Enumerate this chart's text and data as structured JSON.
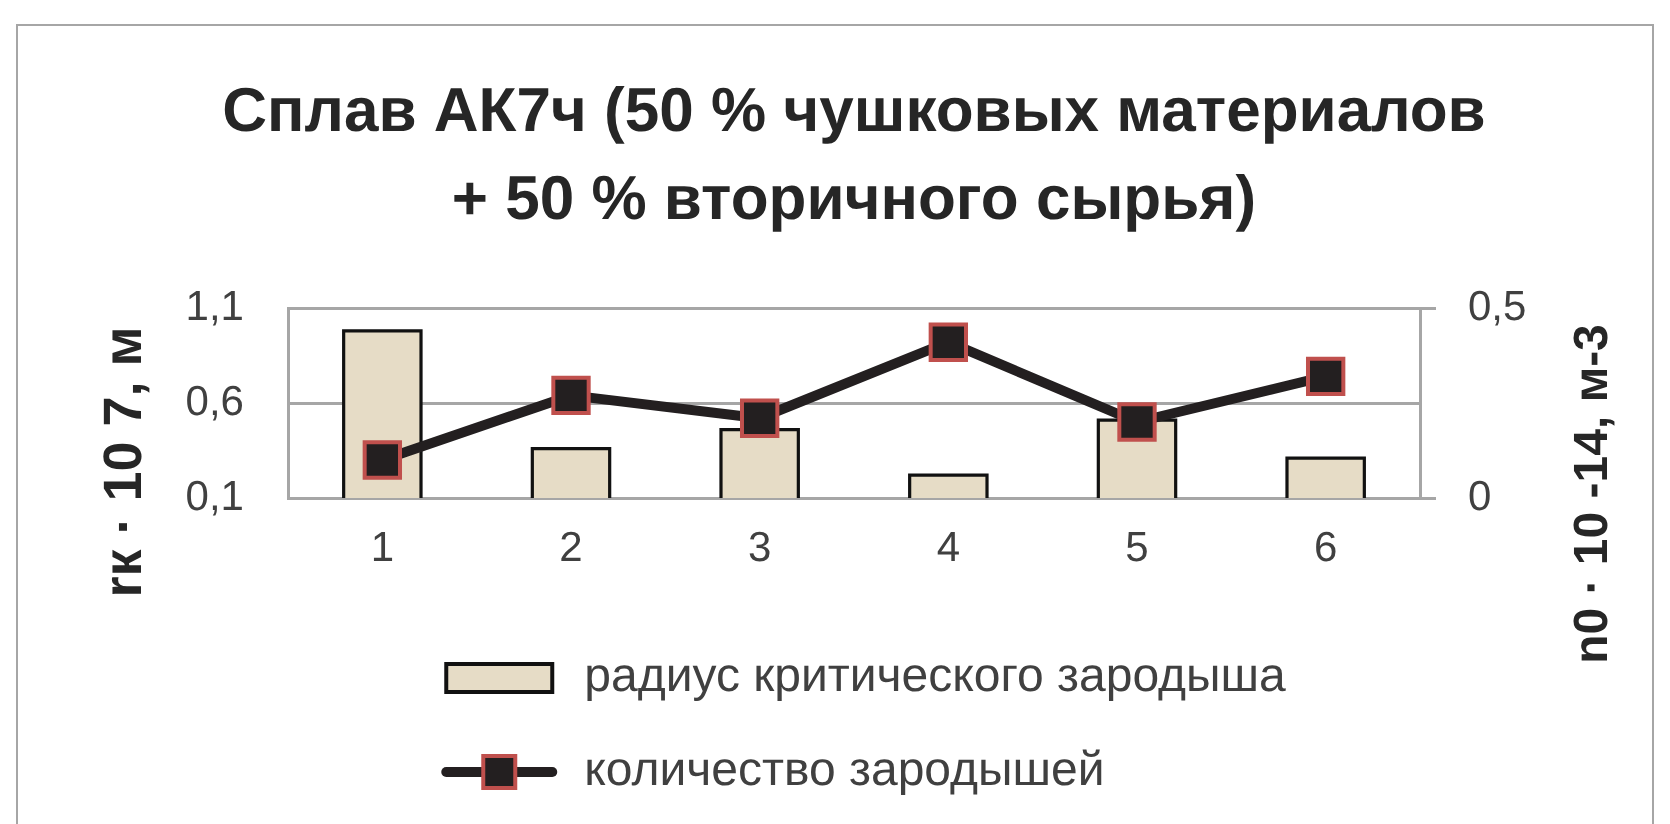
{
  "chart_data": {
    "type": "bar",
    "title": "Сплав АК7ч (50 % чушковых материалов\n+ 50 % вторичного сырья)",
    "ylabel": "rк · 10 7, м",
    "y2label": "n0 · 10 -14, м-3",
    "categories": [
      "1",
      "2",
      "3",
      "4",
      "5",
      "6"
    ],
    "series": [
      {
        "name": "радиус критического зародыша",
        "color": "#e6dcc6",
        "values": [
          0.98,
          0.36,
          0.46,
          0.22,
          0.51,
          0.31
        ]
      },
      {
        "name": "количество зародышей",
        "type": "line",
        "axis": "y2",
        "color": "#231f20",
        "values": [
          0.1,
          0.27,
          0.21,
          0.41,
          0.2,
          0.32
        ]
      }
    ],
    "ylim": [
      0.1,
      1.1
    ],
    "yticks": [
      {
        "value": 0.1,
        "label": "0,1"
      },
      {
        "value": 0.6,
        "label": "0,6"
      },
      {
        "value": 1.1,
        "label": "1,1"
      }
    ],
    "y2lim": [
      0,
      0.5
    ],
    "y2ticks": [
      0,
      {
        "value": 0.5,
        "label": "0,5"
      }
    ],
    "grid": "y",
    "legend": "bottom",
    "marker": "square"
  }
}
